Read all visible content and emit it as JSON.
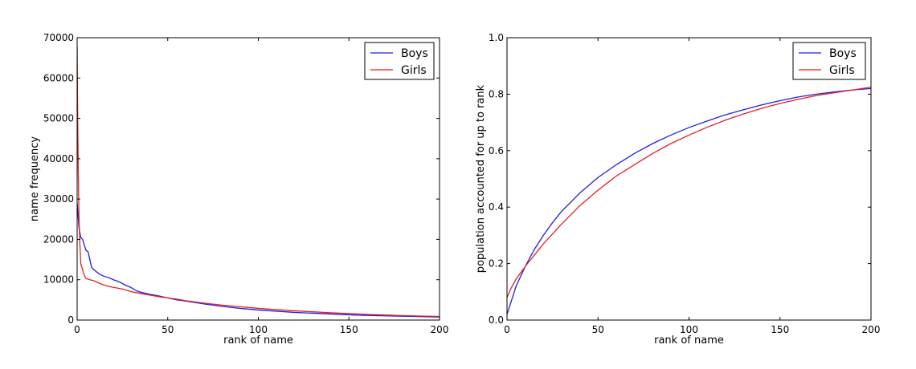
{
  "colors": {
    "boys": "#1f1fe6",
    "girls": "#e61f1f",
    "axes": "#000000",
    "background": "#ffffff"
  },
  "chart_data": [
    {
      "type": "line",
      "title": "",
      "xlabel": "rank of name",
      "ylabel": "name frequency",
      "xlim": [
        0,
        200
      ],
      "ylim": [
        0,
        70000
      ],
      "xticks": [
        0,
        50,
        100,
        150,
        200
      ],
      "yticks": [
        0,
        10000,
        20000,
        30000,
        40000,
        50000,
        60000,
        70000
      ],
      "grid": false,
      "legend_position": "top-right",
      "series": [
        {
          "name": "Boys",
          "color": "#1f1fe6",
          "points": [
            [
              0,
              29000
            ],
            [
              1,
              23000
            ],
            [
              2,
              20500
            ],
            [
              3,
              20000
            ],
            [
              4,
              18500
            ],
            [
              5,
              17200
            ],
            [
              6,
              17000
            ],
            [
              7,
              15000
            ],
            [
              8,
              13000
            ],
            [
              10,
              12200
            ],
            [
              12,
              11500
            ],
            [
              14,
              11000
            ],
            [
              16,
              10700
            ],
            [
              18,
              10400
            ],
            [
              20,
              10000
            ],
            [
              22,
              9700
            ],
            [
              24,
              9300
            ],
            [
              26,
              8800
            ],
            [
              28,
              8400
            ],
            [
              30,
              8000
            ],
            [
              33,
              7200
            ],
            [
              36,
              6800
            ],
            [
              40,
              6400
            ],
            [
              45,
              6000
            ],
            [
              50,
              5500
            ],
            [
              55,
              5000
            ],
            [
              60,
              4700
            ],
            [
              70,
              4000
            ],
            [
              80,
              3400
            ],
            [
              90,
              2900
            ],
            [
              100,
              2500
            ],
            [
              110,
              2200
            ],
            [
              120,
              1900
            ],
            [
              130,
              1700
            ],
            [
              140,
              1500
            ],
            [
              150,
              1300
            ],
            [
              160,
              1150
            ],
            [
              170,
              1050
            ],
            [
              180,
              950
            ],
            [
              190,
              850
            ],
            [
              200,
              750
            ]
          ]
        },
        {
          "name": "Girls",
          "color": "#e61f1f",
          "points": [
            [
              0,
              68000
            ],
            [
              0.3,
              50000
            ],
            [
              0.6,
              38000
            ],
            [
              1,
              26000
            ],
            [
              1.5,
              19000
            ],
            [
              2,
              14000
            ],
            [
              3,
              12500
            ],
            [
              4,
              11000
            ],
            [
              5,
              10300
            ],
            [
              7,
              10000
            ],
            [
              9,
              9800
            ],
            [
              11,
              9400
            ],
            [
              14,
              8800
            ],
            [
              17,
              8400
            ],
            [
              20,
              8100
            ],
            [
              25,
              7700
            ],
            [
              30,
              7000
            ],
            [
              35,
              6600
            ],
            [
              40,
              6200
            ],
            [
              45,
              5800
            ],
            [
              50,
              5500
            ],
            [
              55,
              5200
            ],
            [
              60,
              4800
            ],
            [
              70,
              4200
            ],
            [
              80,
              3700
            ],
            [
              90,
              3300
            ],
            [
              100,
              2900
            ],
            [
              110,
              2600
            ],
            [
              120,
              2300
            ],
            [
              130,
              2050
            ],
            [
              140,
              1800
            ],
            [
              150,
              1600
            ],
            [
              160,
              1400
            ],
            [
              170,
              1250
            ],
            [
              180,
              1100
            ],
            [
              190,
              1000
            ],
            [
              200,
              900
            ]
          ]
        }
      ]
    },
    {
      "type": "line",
      "title": "",
      "xlabel": "rank of name",
      "ylabel": "population accounted for up to rank",
      "xlim": [
        0,
        200
      ],
      "ylim": [
        0,
        1.0
      ],
      "xticks": [
        0,
        50,
        100,
        150,
        200
      ],
      "yticks": [
        0.0,
        0.2,
        0.4,
        0.6,
        0.8,
        1.0
      ],
      "grid": false,
      "legend_position": "top-right",
      "series": [
        {
          "name": "Boys",
          "color": "#1f1fe6",
          "points": [
            [
              0,
              0.02
            ],
            [
              2,
              0.06
            ],
            [
              5,
              0.12
            ],
            [
              10,
              0.19
            ],
            [
              15,
              0.25
            ],
            [
              20,
              0.3
            ],
            [
              25,
              0.345
            ],
            [
              30,
              0.385
            ],
            [
              40,
              0.45
            ],
            [
              50,
              0.505
            ],
            [
              60,
              0.55
            ],
            [
              70,
              0.59
            ],
            [
              80,
              0.625
            ],
            [
              90,
              0.655
            ],
            [
              100,
              0.682
            ],
            [
              110,
              0.705
            ],
            [
              120,
              0.727
            ],
            [
              130,
              0.745
            ],
            [
              140,
              0.762
            ],
            [
              150,
              0.777
            ],
            [
              160,
              0.79
            ],
            [
              170,
              0.8
            ],
            [
              180,
              0.808
            ],
            [
              190,
              0.815
            ],
            [
              200,
              0.82
            ]
          ]
        },
        {
          "name": "Girls",
          "color": "#e61f1f",
          "points": [
            [
              0,
              0.08
            ],
            [
              2,
              0.11
            ],
            [
              5,
              0.145
            ],
            [
              10,
              0.19
            ],
            [
              15,
              0.23
            ],
            [
              20,
              0.27
            ],
            [
              25,
              0.305
            ],
            [
              30,
              0.34
            ],
            [
              40,
              0.405
            ],
            [
              50,
              0.46
            ],
            [
              60,
              0.51
            ],
            [
              70,
              0.55
            ],
            [
              80,
              0.59
            ],
            [
              90,
              0.625
            ],
            [
              100,
              0.655
            ],
            [
              110,
              0.683
            ],
            [
              120,
              0.708
            ],
            [
              130,
              0.73
            ],
            [
              140,
              0.75
            ],
            [
              150,
              0.767
            ],
            [
              160,
              0.782
            ],
            [
              170,
              0.795
            ],
            [
              180,
              0.805
            ],
            [
              190,
              0.815
            ],
            [
              200,
              0.825
            ]
          ]
        }
      ]
    }
  ]
}
